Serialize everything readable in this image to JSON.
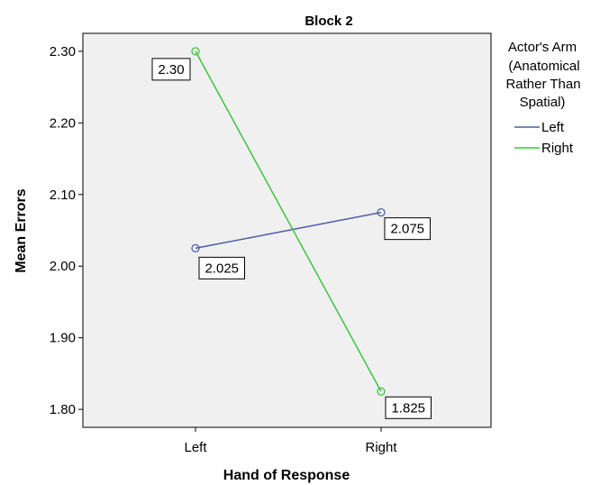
{
  "chart_data": {
    "type": "line",
    "title": "Block 2",
    "xlabel": "Hand of Response",
    "ylabel": "Mean Errors",
    "categories": [
      "Left",
      "Right"
    ],
    "ylim": [
      1.775,
      2.325
    ],
    "yticks": [
      1.8,
      1.9,
      2.0,
      2.1,
      2.2,
      2.3
    ],
    "ytick_labels": [
      "1.80",
      "1.90",
      "2.00",
      "2.10",
      "2.20",
      "2.30"
    ],
    "grid": false,
    "legend": {
      "title_lines": [
        "Actor's Arm",
        "(Anatomical",
        "Rather Than",
        "Spatial)"
      ],
      "placement": "right"
    },
    "series": [
      {
        "name": "Left",
        "color": "#4b5ea8",
        "values": [
          2.025,
          2.075
        ],
        "data_labels": [
          "2.025",
          "2.075"
        ]
      },
      {
        "name": "Right",
        "color": "#3cc43c",
        "values": [
          2.3,
          1.825
        ],
        "data_labels": [
          "2.30",
          "1.825"
        ]
      }
    ]
  }
}
